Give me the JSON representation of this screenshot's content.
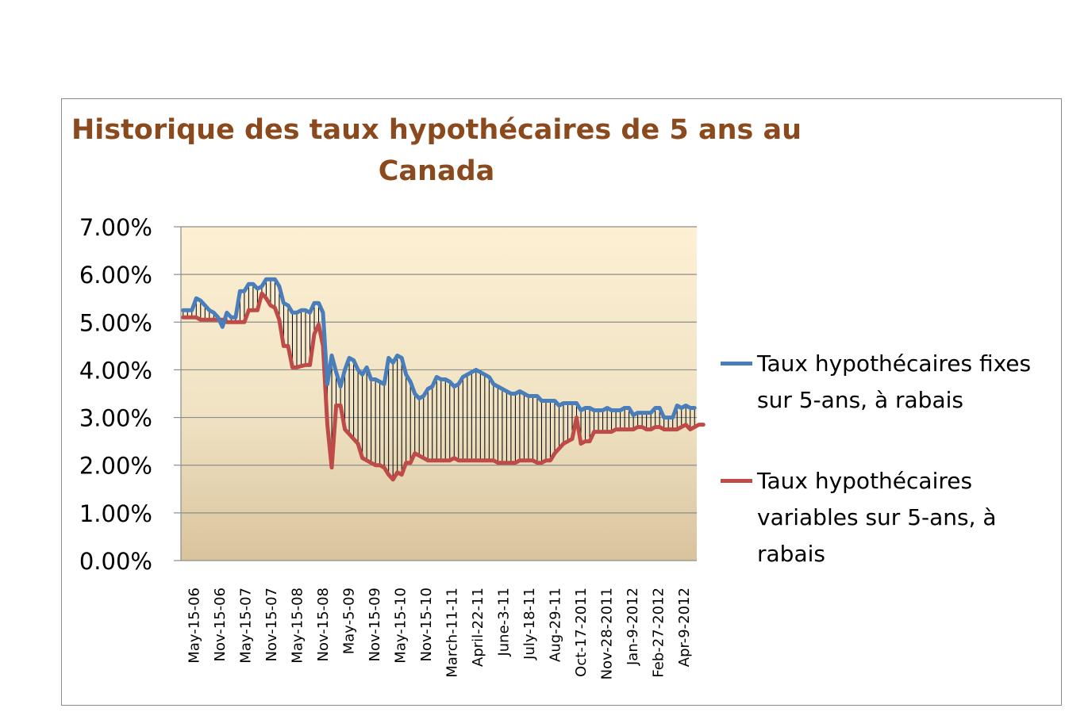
{
  "chart_data": {
    "type": "line",
    "title": "Historique des taux hypothécaires de 5 ans au Canada",
    "xlabel": "",
    "ylabel": "",
    "ylim": [
      0,
      0.07
    ],
    "y_ticks": [
      "7.00%",
      "6.00%",
      "5.00%",
      "4.00%",
      "3.00%",
      "2.00%",
      "1.00%",
      "0.00%"
    ],
    "x_tick_labels": [
      "May-15-06",
      "Nov-15-06",
      "May-15-07",
      "Nov-15-07",
      "May-15-08",
      "Nov-15-08",
      "May-5-09",
      "Nov-15-09",
      "May-15-10",
      "Nov-15-10",
      "March-11-11",
      "April-22-11",
      "June-3-11",
      "July-18-11",
      "Aug-29-11",
      "Oct-17-2011",
      "Nov-28-2011",
      "Jan-9-2012",
      "Feb-27-2012",
      "Apr-9-2012"
    ],
    "legend_position": "right",
    "grid": true,
    "high_low_lines": true,
    "background_gradient": [
      "#fdf0d3",
      "#d9c39c"
    ],
    "series": [
      {
        "name": "Taux hypothécaires fixes sur 5-ans, à rabais",
        "color": "#4a7ebb",
        "values": [
          0.0525,
          0.0525,
          0.0525,
          0.055,
          0.0545,
          0.0535,
          0.0525,
          0.052,
          0.051,
          0.049,
          0.052,
          0.051,
          0.051,
          0.0565,
          0.0565,
          0.058,
          0.058,
          0.057,
          0.0575,
          0.059,
          0.059,
          0.059,
          0.0575,
          0.054,
          0.0535,
          0.052,
          0.052,
          0.0525,
          0.0525,
          0.052,
          0.054,
          0.054,
          0.052,
          0.037,
          0.043,
          0.0395,
          0.0365,
          0.04,
          0.0425,
          0.042,
          0.04,
          0.039,
          0.0405,
          0.038,
          0.038,
          0.0375,
          0.037,
          0.0425,
          0.0415,
          0.043,
          0.0425,
          0.039,
          0.0375,
          0.035,
          0.034,
          0.0345,
          0.036,
          0.0365,
          0.0385,
          0.038,
          0.038,
          0.0375,
          0.0365,
          0.037,
          0.0385,
          0.039,
          0.0395,
          0.04,
          0.0395,
          0.039,
          0.0385,
          0.037,
          0.0365,
          0.036,
          0.0355,
          0.035,
          0.035,
          0.0355,
          0.035,
          0.0345,
          0.0345,
          0.0345,
          0.0335,
          0.0335,
          0.0335,
          0.0335,
          0.0325,
          0.033,
          0.033,
          0.033,
          0.033,
          0.0315,
          0.032,
          0.032,
          0.0315,
          0.0315,
          0.0315,
          0.032,
          0.0315,
          0.0315,
          0.0315,
          0.032,
          0.032,
          0.0305,
          0.031,
          0.031,
          0.031,
          0.031,
          0.032,
          0.032,
          0.03,
          0.03,
          0.03,
          0.0325,
          0.032,
          0.0325,
          0.032,
          0.032
        ]
      },
      {
        "name": "Taux hypothécaires variables sur 5-ans, à rabais",
        "color": "#be4b48",
        "values": [
          0.051,
          0.051,
          0.051,
          0.051,
          0.0505,
          0.0505,
          0.0505,
          0.0505,
          0.0505,
          0.0505,
          0.05,
          0.05,
          0.05,
          0.05,
          0.05,
          0.0525,
          0.0525,
          0.0525,
          0.056,
          0.055,
          0.0535,
          0.053,
          0.0505,
          0.045,
          0.045,
          0.0405,
          0.0405,
          0.0408,
          0.041,
          0.041,
          0.0475,
          0.0495,
          0.045,
          0.0285,
          0.0195,
          0.0325,
          0.0325,
          0.0275,
          0.0265,
          0.0255,
          0.0245,
          0.0215,
          0.021,
          0.0205,
          0.02,
          0.02,
          0.0195,
          0.018,
          0.017,
          0.0185,
          0.018,
          0.0205,
          0.0205,
          0.0225,
          0.022,
          0.0215,
          0.021,
          0.021,
          0.021,
          0.021,
          0.021,
          0.021,
          0.0215,
          0.021,
          0.021,
          0.021,
          0.021,
          0.021,
          0.021,
          0.021,
          0.021,
          0.021,
          0.0205,
          0.0205,
          0.0205,
          0.0205,
          0.0205,
          0.021,
          0.021,
          0.021,
          0.021,
          0.0205,
          0.0205,
          0.021,
          0.021,
          0.0225,
          0.0235,
          0.0245,
          0.025,
          0.0255,
          0.03,
          0.0245,
          0.025,
          0.025,
          0.027,
          0.027,
          0.027,
          0.027,
          0.027,
          0.0275,
          0.0275,
          0.0275,
          0.0275,
          0.0275,
          0.028,
          0.028,
          0.0275,
          0.0275,
          0.028,
          0.028,
          0.0275,
          0.0275,
          0.0275,
          0.0275,
          0.028,
          0.0285,
          0.0275,
          0.028,
          0.0285,
          0.0285
        ]
      }
    ]
  }
}
